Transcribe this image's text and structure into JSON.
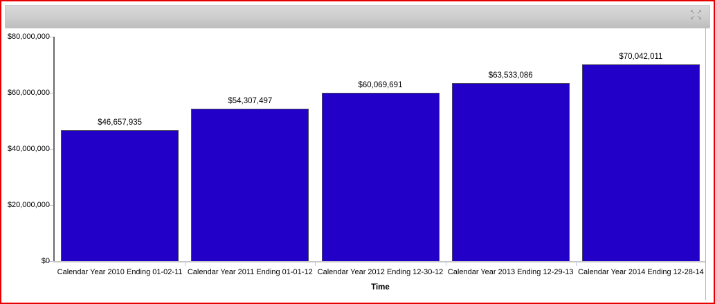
{
  "window": {
    "border_color": "#e80000",
    "header": {
      "background_top": "#d9d9d9",
      "background_bottom": "#bdbdbd",
      "icon": "expand-arrows-icon"
    }
  },
  "chart_data": {
    "type": "bar",
    "title": "",
    "xlabel": "Time",
    "ylabel": "",
    "categories": [
      "Calendar Year 2010 Ending 01-02-11",
      "Calendar Year 2011 Ending 01-01-12",
      "Calendar Year 2012 Ending 12-30-12",
      "Calendar Year 2013 Ending 12-29-13",
      "Calendar Year 2014 Ending 12-28-14"
    ],
    "values": [
      46657935,
      54307497,
      60069691,
      63533086,
      70042011
    ],
    "value_labels": [
      "$46,657,935",
      "$54,307,497",
      "$60,069,691",
      "$63,533,086",
      "$70,042,011"
    ],
    "y_ticks": [
      {
        "value": 80000000,
        "label": "$80,000,000"
      },
      {
        "value": 60000000,
        "label": "$60,000,000"
      },
      {
        "value": 40000000,
        "label": "$40,000,000"
      },
      {
        "value": 20000000,
        "label": "$20,000,000"
      },
      {
        "value": 0,
        "label": "$0"
      }
    ],
    "ylim": [
      0,
      80000000
    ],
    "bar_color": "#2200c8",
    "bar_border_color": "#46465a",
    "grid": false,
    "legend": "none"
  }
}
